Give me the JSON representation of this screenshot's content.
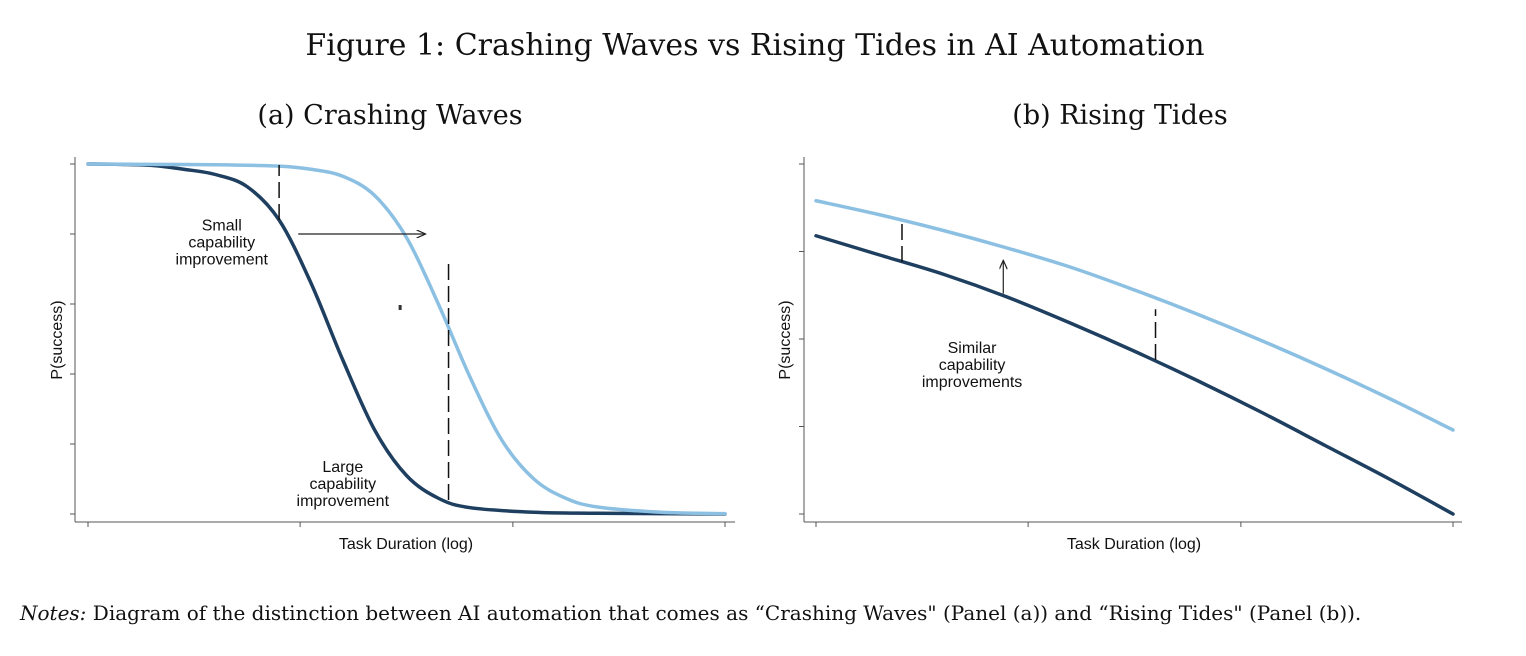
{
  "figure_title": "Figure 1: Crashing Waves vs Rising Tides in AI Automation",
  "notes": {
    "lead": "Notes:",
    "text": " Diagram of the distinction between AI automation that comes as “Crashing Waves\" (Panel (a)) and “Rising Tides\" (Panel (b))."
  },
  "colors": {
    "dark_curve": "#1f3f60",
    "light_curve": "#8cc0e3",
    "axis": "#555555"
  },
  "chart_data": [
    {
      "type": "line",
      "panel_title": "(a) Crashing Waves",
      "xlabel": "Task Duration (log)",
      "ylabel": "P(success)",
      "xlim": [
        0,
        1
      ],
      "ylim": [
        0,
        1
      ],
      "x_ticks": [
        0,
        0.333,
        0.667,
        1
      ],
      "y_ticks": [
        0,
        0.2,
        0.4,
        0.6,
        0.8,
        1
      ],
      "series": [
        {
          "key": "dark",
          "values": [
            [
              0,
              1.0
            ],
            [
              0.05,
              0.999
            ],
            [
              0.1,
              0.996
            ],
            [
              0.15,
              0.985
            ],
            [
              0.2,
              0.97
            ],
            [
              0.25,
              0.935
            ],
            [
              0.3,
              0.84
            ],
            [
              0.35,
              0.66
            ],
            [
              0.4,
              0.44
            ],
            [
              0.45,
              0.24
            ],
            [
              0.5,
              0.11
            ],
            [
              0.55,
              0.045
            ],
            [
              0.6,
              0.018
            ],
            [
              0.7,
              0.005
            ],
            [
              0.8,
              0.002
            ],
            [
              1.0,
              0.0
            ]
          ]
        },
        {
          "key": "light",
          "values": [
            [
              0,
              1.0
            ],
            [
              0.1,
              0.999
            ],
            [
              0.2,
              0.998
            ],
            [
              0.3,
              0.994
            ],
            [
              0.35,
              0.985
            ],
            [
              0.4,
              0.965
            ],
            [
              0.45,
              0.91
            ],
            [
              0.5,
              0.79
            ],
            [
              0.55,
              0.6
            ],
            [
              0.6,
              0.39
            ],
            [
              0.65,
              0.21
            ],
            [
              0.7,
              0.1
            ],
            [
              0.75,
              0.045
            ],
            [
              0.8,
              0.02
            ],
            [
              0.9,
              0.005
            ],
            [
              1.0,
              0.001
            ]
          ]
        }
      ],
      "dashed_markers": [
        {
          "x": 0.3,
          "y_from": 0.84,
          "y_to": 0.997
        },
        {
          "x": 0.566,
          "y_from": 0.04,
          "y_to": 0.73
        }
      ],
      "arrow": {
        "from": [
          0.33,
          0.8
        ],
        "to": [
          0.53,
          0.8
        ]
      },
      "small_dot": {
        "x": 0.49,
        "y": 0.59
      },
      "annotations": [
        {
          "key": "small",
          "lines": [
            "Small",
            "capability",
            "improvement"
          ],
          "x": 0.21,
          "y": 0.81
        },
        {
          "key": "large",
          "lines": [
            "Large",
            "capability",
            "improvement"
          ],
          "x": 0.4,
          "y": 0.12
        }
      ]
    },
    {
      "type": "line",
      "panel_title": "(b) Rising Tides",
      "xlabel": "Task Duration (log)",
      "ylabel": "P(success)",
      "xlim": [
        0,
        1
      ],
      "ylim": [
        0,
        1
      ],
      "x_ticks": [
        0,
        0.333,
        0.667,
        1
      ],
      "y_ticks": [
        0,
        0.25,
        0.5,
        0.75,
        1
      ],
      "series": [
        {
          "key": "dark",
          "values": [
            [
              0,
              0.795
            ],
            [
              0.1,
              0.74
            ],
            [
              0.2,
              0.685
            ],
            [
              0.3,
              0.62
            ],
            [
              0.4,
              0.545
            ],
            [
              0.5,
              0.465
            ],
            [
              0.6,
              0.38
            ],
            [
              0.7,
              0.29
            ],
            [
              0.8,
              0.195
            ],
            [
              0.9,
              0.1
            ],
            [
              1.0,
              0.0
            ]
          ]
        },
        {
          "key": "light",
          "values": [
            [
              0,
              0.895
            ],
            [
              0.1,
              0.855
            ],
            [
              0.2,
              0.81
            ],
            [
              0.3,
              0.76
            ],
            [
              0.4,
              0.705
            ],
            [
              0.5,
              0.64
            ],
            [
              0.6,
              0.57
            ],
            [
              0.7,
              0.495
            ],
            [
              0.8,
              0.415
            ],
            [
              0.9,
              0.33
            ],
            [
              1.0,
              0.24
            ]
          ]
        }
      ],
      "dashed_markers": [
        {
          "x": 0.135,
          "y_from": 0.72,
          "y_to": 0.84
        },
        {
          "x": 0.533,
          "y_from": 0.44,
          "y_to": 0.585
        }
      ],
      "arrow": {
        "from": [
          0.294,
          0.63
        ],
        "to": [
          0.294,
          0.725
        ]
      },
      "annotations": [
        {
          "key": "similar",
          "lines": [
            "Similar",
            "capability",
            "improvements"
          ],
          "x": 0.245,
          "y": 0.46
        }
      ]
    }
  ]
}
